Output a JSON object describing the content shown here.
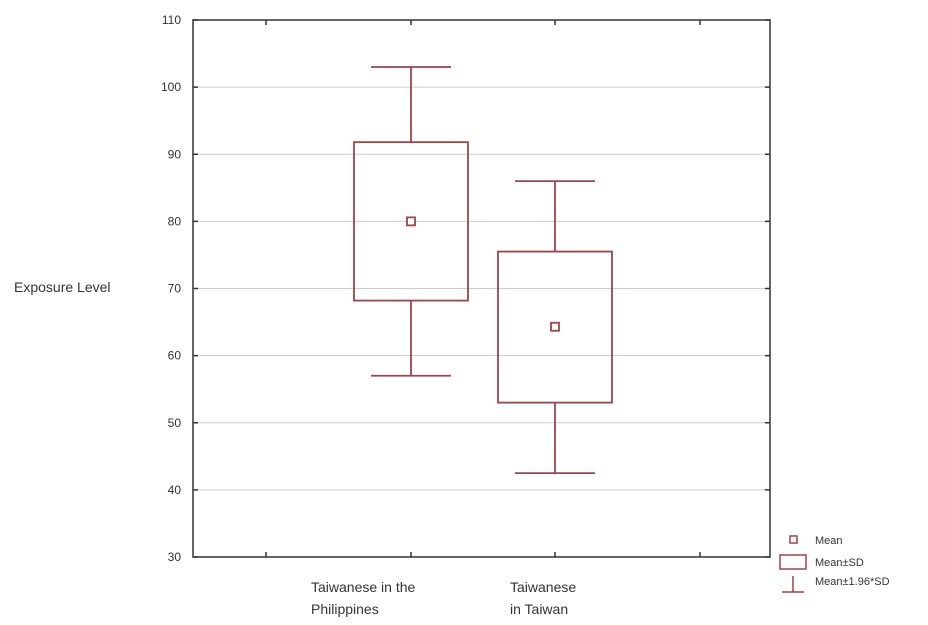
{
  "chart_data": {
    "type": "box",
    "ylabel": "Exposure Level",
    "xlabel": "",
    "ylim": [
      30,
      110
    ],
    "yticks": [
      30,
      40,
      50,
      60,
      70,
      80,
      90,
      100,
      110
    ],
    "grid": true,
    "categories": [
      {
        "lines": [
          "Taiwanese in the",
          "Philippines"
        ],
        "mean": 80,
        "sd_low": 68.2,
        "sd_high": 91.8,
        "ci_low": 57,
        "ci_high": 103
      },
      {
        "lines": [
          "Taiwanese",
          "in Taiwan"
        ],
        "mean": 64.3,
        "sd_low": 53,
        "sd_high": 75.5,
        "ci_low": 42.5,
        "ci_high": 86
      }
    ],
    "legend": {
      "position": "bottom-right",
      "items": [
        "Mean",
        "Mean±SD",
        "Mean±1.96*SD"
      ]
    },
    "colors": {
      "marks": "#a0434a",
      "grid": "#cccccc",
      "frame": "#333333"
    }
  }
}
